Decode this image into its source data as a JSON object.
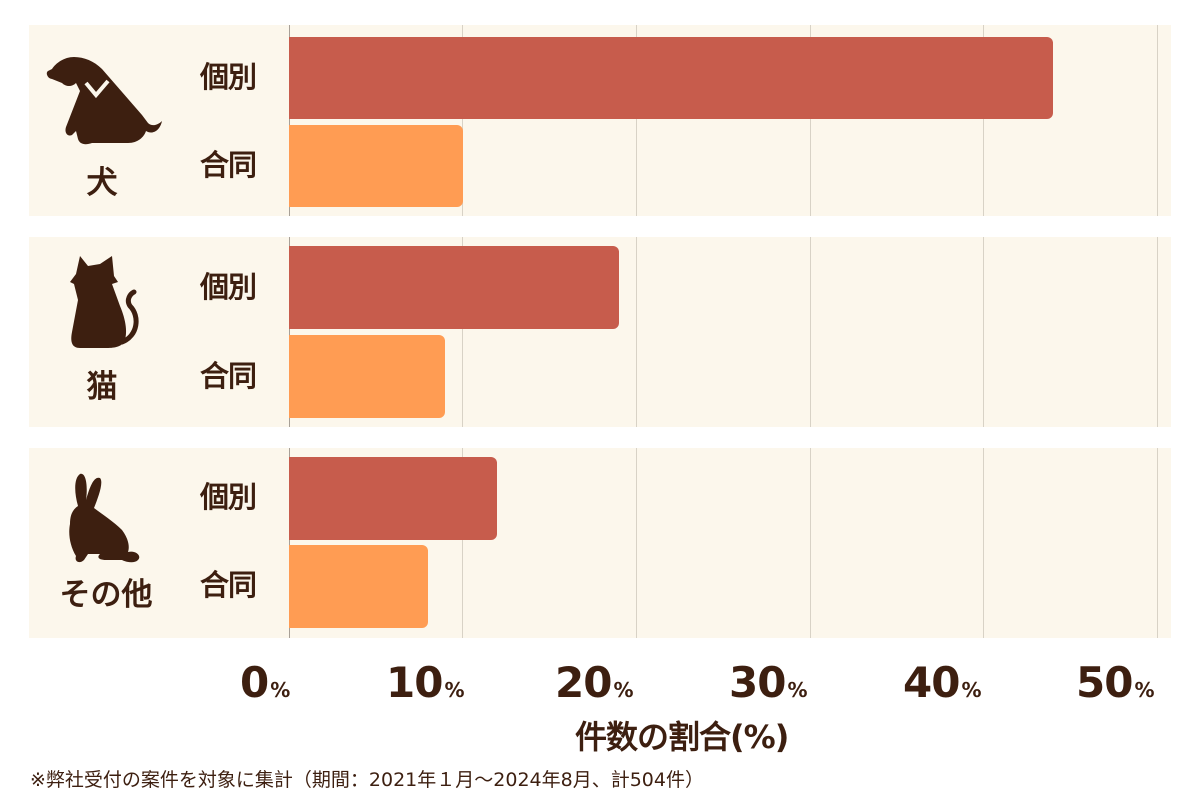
{
  "chart_data": {
    "type": "bar",
    "orientation": "horizontal",
    "title": "",
    "xlabel": "件数の割合(%)",
    "ylabel": "",
    "xlim": [
      0,
      50
    ],
    "x_ticks": [
      "0%",
      "10%",
      "20%",
      "30%",
      "40%",
      "50%"
    ],
    "grid": true,
    "groups": [
      "犬",
      "猫",
      "その他"
    ],
    "subcategories": [
      "個別",
      "合同"
    ],
    "series": [
      {
        "name": "個別",
        "color": "#c75c4c",
        "values": [
          44,
          19,
          12
        ]
      },
      {
        "name": "合同",
        "color": "#ff9c53",
        "values": [
          10,
          9,
          8
        ]
      }
    ],
    "footnote": "※弊社受付の案件を対象に集計（期間：2021年１月～2024年8月、計504件）"
  },
  "groups": [
    {
      "name": "犬",
      "icon": "dog-icon",
      "bars": [
        {
          "label": "個別",
          "value": 44
        },
        {
          "label": "合同",
          "value": 10
        }
      ]
    },
    {
      "name": "猫",
      "icon": "cat-icon",
      "bars": [
        {
          "label": "個別",
          "value": 19
        },
        {
          "label": "合同",
          "value": 9
        }
      ]
    },
    {
      "name": "その他",
      "icon": "rabbit-icon",
      "bars": [
        {
          "label": "個別",
          "value": 12
        },
        {
          "label": "合同",
          "value": 8
        }
      ]
    }
  ],
  "ticks": [
    {
      "num": "0",
      "unit": "%"
    },
    {
      "num": "10",
      "unit": "%"
    },
    {
      "num": "20",
      "unit": "%"
    },
    {
      "num": "30",
      "unit": "%"
    },
    {
      "num": "40",
      "unit": "%"
    },
    {
      "num": "50",
      "unit": "%"
    }
  ],
  "axis": {
    "xlabel": "件数の割合(%)"
  },
  "footnote": "※弊社受付の案件を対象に集計（期間：2021年１月～2024年8月、計504件）",
  "colors": {
    "individual": "#c75c4c",
    "joint": "#ff9c53",
    "panel": "#fcf7ec",
    "text": "#3d1f10"
  }
}
